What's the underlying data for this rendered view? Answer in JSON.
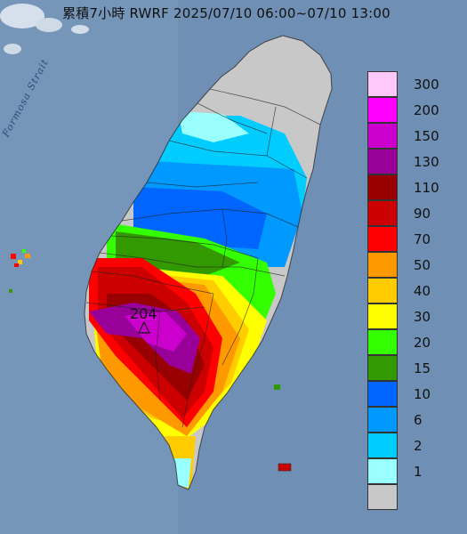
{
  "title": "累積7小時 RWRF 2025/07/10 06:00~07/10 13:00",
  "sea_label": "Formosa Strait",
  "max_marker": {
    "value": "204",
    "symbol": "triangle"
  },
  "legend": [
    {
      "label": "300",
      "color": "#ffc8fb"
    },
    {
      "label": "200",
      "color": "#ff00ff"
    },
    {
      "label": "150",
      "color": "#cc00cc"
    },
    {
      "label": "130",
      "color": "#990099"
    },
    {
      "label": "110",
      "color": "#990000"
    },
    {
      "label": "90",
      "color": "#cc0000"
    },
    {
      "label": "70",
      "color": "#ff0000"
    },
    {
      "label": "50",
      "color": "#ff9900"
    },
    {
      "label": "40",
      "color": "#ffcc00"
    },
    {
      "label": "30",
      "color": "#ffff00"
    },
    {
      "label": "20",
      "color": "#33ff00"
    },
    {
      "label": "15",
      "color": "#339900"
    },
    {
      "label": "10",
      "color": "#0066ff"
    },
    {
      "label": "6",
      "color": "#0099ff"
    },
    {
      "label": "2",
      "color": "#00ccff"
    },
    {
      "label": "1",
      "color": "#99ffff"
    },
    {
      "label": "",
      "color": "#c8c8c8"
    }
  ]
}
